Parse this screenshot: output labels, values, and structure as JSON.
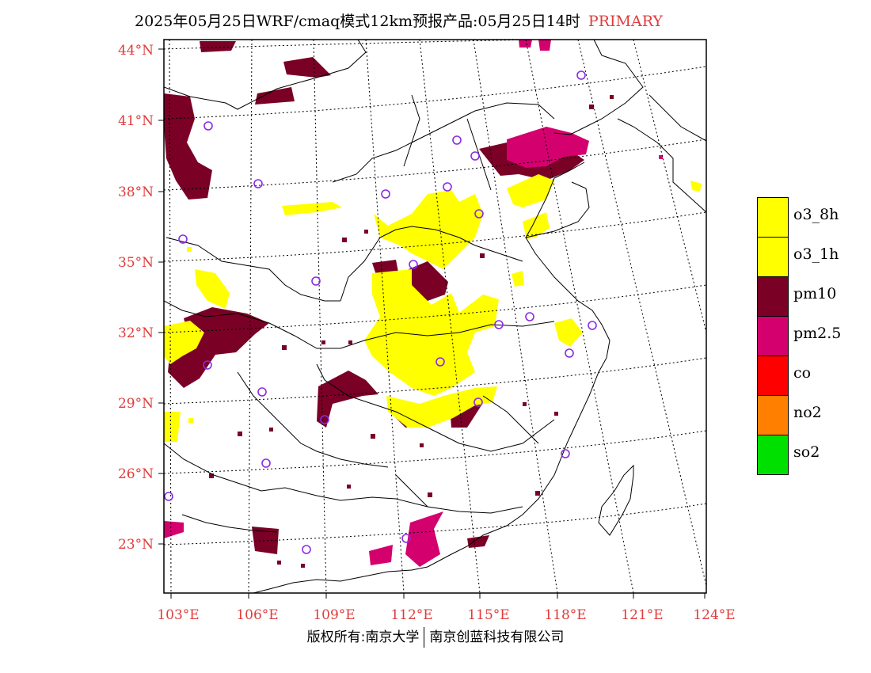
{
  "title": {
    "main": "2025年05月25日WRF/cmaq模式12km预报产品:05月25日14时",
    "tag": "PRIMARY"
  },
  "axes": {
    "lat_labels": [
      "44°N",
      "41°N",
      "38°N",
      "35°N",
      "32°N",
      "29°N",
      "26°N",
      "23°N"
    ],
    "lon_labels": [
      "103°E",
      "106°E",
      "109°E",
      "112°E",
      "115°E",
      "118°E",
      "121°E",
      "124°E"
    ],
    "label_color": "#e03c3c"
  },
  "legend": [
    {
      "label": "o3_8h",
      "color": "#ffff00"
    },
    {
      "label": "o3_1h",
      "color": "#ffff00"
    },
    {
      "label": "pm10",
      "color": "#7a0026"
    },
    {
      "label": "pm2.5",
      "color": "#d4006e"
    },
    {
      "label": "co",
      "color": "#ff0000"
    },
    {
      "label": "no2",
      "color": "#ff8000"
    },
    {
      "label": "so2",
      "color": "#00e000"
    }
  ],
  "footer": {
    "left": "版权所有:南京大学",
    "right": "南京创蓝科技有限公司"
  },
  "colors": {
    "o3": "#ffff00",
    "pm10": "#7a0026",
    "pm25": "#d4006e",
    "city_marker": "#8a2be2"
  }
}
